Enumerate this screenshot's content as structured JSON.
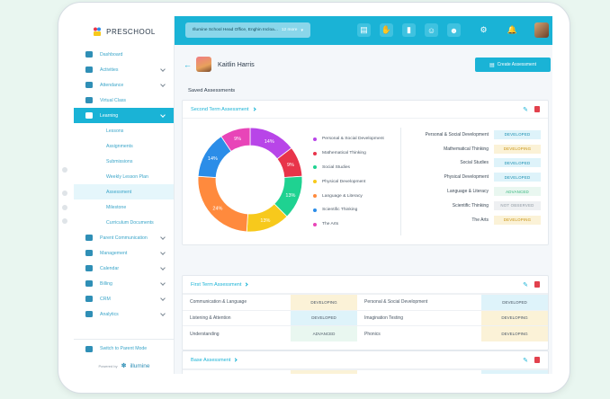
{
  "app": {
    "logo_text": "PRESCHOOL"
  },
  "sidebar": {
    "items": [
      {
        "label": "Dashboard",
        "icon": "dashboard-icon",
        "chevron": false
      },
      {
        "label": "Activities",
        "icon": "activities-icon",
        "chevron": true
      },
      {
        "label": "Attendance",
        "icon": "attendance-icon",
        "chevron": true
      },
      {
        "label": "Virtual Class",
        "icon": "virtual-class-icon",
        "chevron": false
      },
      {
        "label": "Learning",
        "icon": "learning-icon",
        "chevron": true,
        "active": true
      }
    ],
    "subitems": [
      "Lessons",
      "Assignments",
      "Submissions",
      "Weekly Lesson Plan",
      "Assessment",
      "Milestone",
      "Curriculum Documents"
    ],
    "more_items": [
      {
        "label": "Parent Communication",
        "icon": "parent-communication-icon"
      },
      {
        "label": "Management",
        "icon": "management-icon"
      },
      {
        "label": "Calendar",
        "icon": "calendar-icon"
      },
      {
        "label": "Billing",
        "icon": "billing-icon"
      },
      {
        "label": "CRM",
        "icon": "crm-icon"
      },
      {
        "label": "Analytics",
        "icon": "analytics-icon"
      }
    ],
    "switch_label": "Switch to Parent Mode",
    "powered_by": "Powered by",
    "brand": "illumine"
  },
  "topbar": {
    "location": "Illumine School Head Office, Enghin Incloa...",
    "more": "12 more"
  },
  "student": {
    "name": "Kaitlin Harris"
  },
  "create_button": "Create Assessment",
  "saved_title": "Saved Assessments",
  "second_term": {
    "title": "Second Term Assessment",
    "chart_data": {
      "type": "pie",
      "categories": [
        "Personal & Social Development",
        "Mathematical Thinking",
        "Social Studies",
        "Physical Development",
        "Language & Literacy",
        "Scientific Thinking",
        "The Arts"
      ],
      "values": [
        14,
        9,
        13,
        13,
        24,
        14,
        9
      ],
      "colors": [
        "#b845e8",
        "#e8344a",
        "#1fd291",
        "#f7c91c",
        "#ff8a3d",
        "#2b8de8",
        "#e845b8"
      ]
    },
    "rows": [
      {
        "label": "Personal & Social Development",
        "status": "DEVELOPED",
        "cls": "b-dev"
      },
      {
        "label": "Mathematical Thinking",
        "status": "DEVELOPING",
        "cls": "b-ing"
      },
      {
        "label": "Social Studies",
        "status": "DEVELOPED",
        "cls": "b-dev"
      },
      {
        "label": "Physical Development",
        "status": "DEVELOPED",
        "cls": "b-dev"
      },
      {
        "label": "Language & Literacy",
        "status": "ADVANCED",
        "cls": "b-adv"
      },
      {
        "label": "Scientific Thinking",
        "status": "NOT OBSERVED",
        "cls": "b-not"
      },
      {
        "label": "The Arts",
        "status": "DEVELOPING",
        "cls": "b-ing"
      }
    ]
  },
  "first_term": {
    "title": "First Term Assessment",
    "rows": [
      [
        "Communication & Language",
        "DEVELOPING",
        "Personal & Social Development",
        "DEVELOPED"
      ],
      [
        "Listening & Attention",
        "DEVELOPED",
        "Imagination Testing",
        "DEVELOPING"
      ],
      [
        "Understanding",
        "ADVANCED",
        "Phonics",
        "DEVELOPING"
      ]
    ]
  },
  "base": {
    "title": "Base Assessment",
    "rows": [
      [
        "Communication & Language",
        "DEVELOPING",
        "Personal & Social Development",
        "DEVELOPED"
      ]
    ]
  }
}
